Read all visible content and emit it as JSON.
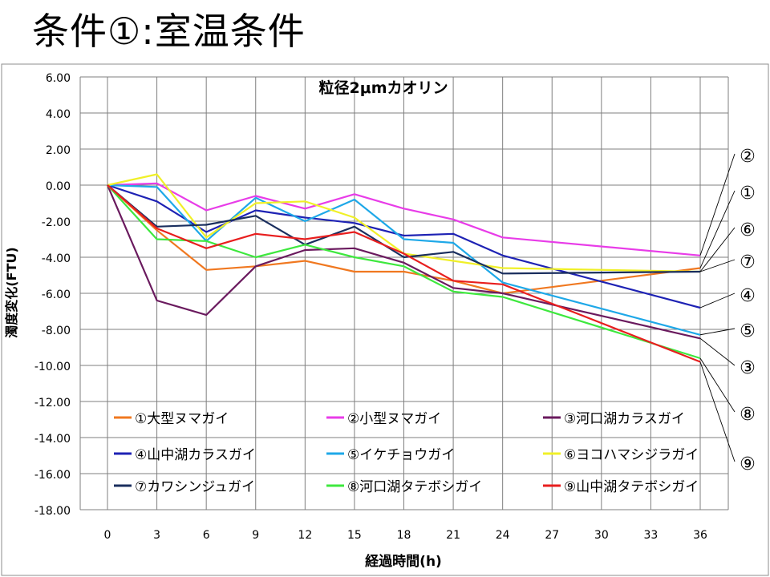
{
  "slide": {
    "title": "条件①:室温条件"
  },
  "chart_data": {
    "type": "line",
    "title": "粒径2μmカオリン",
    "xlabel": "経過時間(h)",
    "ylabel": "濁度変化(FTU)",
    "x": [
      0,
      3,
      6,
      9,
      12,
      15,
      18,
      21,
      24,
      36
    ],
    "xticks": [
      "0",
      "3",
      "6",
      "9",
      "12",
      "15",
      "18",
      "21",
      "24",
      "27",
      "30",
      "33",
      "36"
    ],
    "xlim": [
      0,
      36
    ],
    "ylim": [
      -18,
      6
    ],
    "yticks": [
      "6.00",
      "4.00",
      "2.00",
      "0.00",
      "-2.00",
      "-4.00",
      "-6.00",
      "-8.00",
      "-10.00",
      "-12.00",
      "-14.00",
      "-16.00",
      "-18.00"
    ],
    "grid": true,
    "legend_position": "inside-bottom",
    "series": [
      {
        "name": "①大型ヌマガイ",
        "color": "#F07820",
        "marker": "①",
        "values": [
          0,
          -2.5,
          -4.7,
          -4.5,
          -4.2,
          -4.8,
          -4.8,
          -5.3,
          -6.0,
          -4.6
        ]
      },
      {
        "name": "②小型ヌマガイ",
        "color": "#E83CE8",
        "marker": "②",
        "values": [
          0,
          0.1,
          -1.4,
          -0.6,
          -1.3,
          -0.5,
          -1.3,
          -1.9,
          -2.9,
          -3.9
        ]
      },
      {
        "name": "③河口湖カラスガイ",
        "color": "#6A1A5E",
        "marker": "③",
        "values": [
          0,
          -6.4,
          -7.2,
          -4.5,
          -3.6,
          -3.5,
          -4.3,
          -5.7,
          -6.0,
          -8.5
        ]
      },
      {
        "name": "④山中湖カラスガイ",
        "color": "#1E22B4",
        "marker": "④",
        "values": [
          0,
          -0.9,
          -2.6,
          -1.4,
          -1.8,
          -2.1,
          -2.8,
          -2.7,
          -3.9,
          -6.8
        ]
      },
      {
        "name": "⑤イケチョウガイ",
        "color": "#1EA8E8",
        "marker": "⑤",
        "values": [
          0,
          -0.1,
          -3.1,
          -0.7,
          -2.0,
          -0.8,
          -3.0,
          -3.2,
          -5.4,
          -8.3
        ]
      },
      {
        "name": "⑥ヨコハマシジラガイ",
        "color": "#F0F028",
        "marker": "⑥",
        "values": [
          0,
          0.6,
          -2.9,
          -1.0,
          -0.9,
          -1.8,
          -3.8,
          -4.2,
          -4.6,
          -4.8
        ]
      },
      {
        "name": "⑦カワシンジュガイ",
        "color": "#1A2E5E",
        "marker": "⑦",
        "values": [
          0,
          -2.3,
          -2.2,
          -1.7,
          -3.3,
          -2.3,
          -4.0,
          -3.7,
          -4.9,
          -4.8
        ]
      },
      {
        "name": "⑧河口湖タテボシガイ",
        "color": "#3EE83E",
        "marker": "⑧",
        "values": [
          0,
          -3.0,
          -3.1,
          -4.0,
          -3.3,
          -4.0,
          -4.5,
          -5.9,
          -6.2,
          -9.6
        ]
      },
      {
        "name": "⑨山中湖タテボシガイ",
        "color": "#E81E1E",
        "marker": "⑨",
        "values": [
          0,
          -2.4,
          -3.5,
          -2.7,
          -3.0,
          -2.6,
          -3.8,
          -5.3,
          -5.5,
          -9.8
        ]
      }
    ],
    "end_label_order": [
      "②",
      "①",
      "⑥",
      "⑦",
      "④",
      "⑤",
      "③",
      "⑧",
      "⑨"
    ]
  }
}
